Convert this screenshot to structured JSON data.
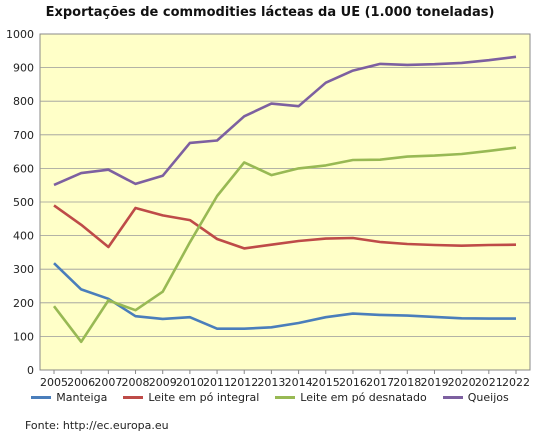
{
  "chart_data": {
    "type": "line",
    "title": "Exportações de commodities lácteas da UE (1.000 toneladas)",
    "xlabel": "",
    "ylabel": "",
    "ylim": [
      0,
      1000
    ],
    "yticks": [
      0,
      100,
      200,
      300,
      400,
      500,
      600,
      700,
      800,
      900,
      1000
    ],
    "grid": true,
    "legend_position": "bottom",
    "x": [
      "2005",
      "2006",
      "2007",
      "2008",
      "2009",
      "2010",
      "2011",
      "2012",
      "2013",
      "2014",
      "2015",
      "2016",
      "2017",
      "2018",
      "2019",
      "2020",
      "2021",
      "2022"
    ],
    "series": [
      {
        "name": "Manteiga",
        "color": "#4a7ebb",
        "values": [
          318,
          240,
          212,
          160,
          152,
          157,
          123,
          123,
          127,
          140,
          157,
          168,
          164,
          162,
          158,
          154,
          153,
          153
        ]
      },
      {
        "name": "Leite em pó integral",
        "color": "#be4b48",
        "values": [
          490,
          432,
          366,
          482,
          460,
          446,
          390,
          362,
          373,
          384,
          391,
          393,
          381,
          375,
          372,
          370,
          372,
          373
        ]
      },
      {
        "name": "Leite em pó desnatado",
        "color": "#98b954",
        "values": [
          190,
          84,
          207,
          178,
          233,
          380,
          518,
          618,
          580,
          600,
          609,
          625,
          626,
          635,
          638,
          643,
          652,
          662
        ]
      },
      {
        "name": "Queijos",
        "color": "#7d60a0",
        "values": [
          551,
          586,
          596,
          554,
          578,
          676,
          683,
          755,
          793,
          785,
          855,
          891,
          911,
          908,
          910,
          914,
          922,
          932
        ]
      }
    ]
  },
  "source": "Fonte: http://ec.europa.eu"
}
